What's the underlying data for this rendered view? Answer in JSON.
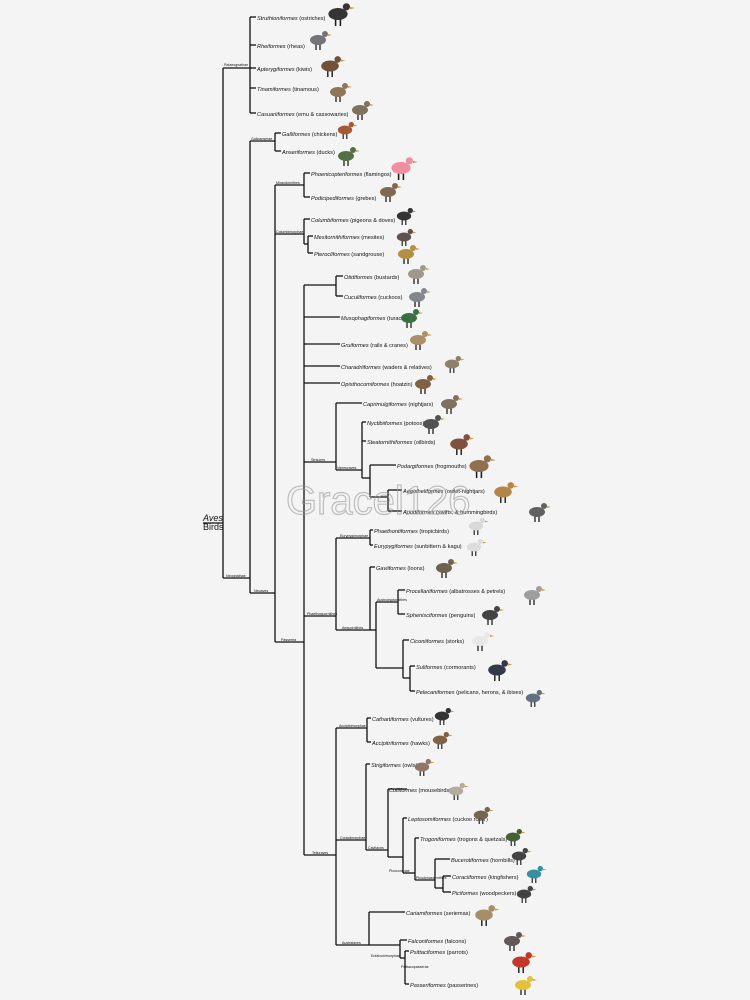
{
  "root": {
    "name": "Aves",
    "common": "Birds"
  },
  "watermark": "Gracel126",
  "colors": {
    "line": "#111111",
    "background": "#f4f4f4"
  },
  "clades": {
    "palaeognathae": "Palaeognathae",
    "neognathae": "Neognathae",
    "galloanserae": "Galloanserae",
    "neoaves": "Neoaves",
    "mirandornithes": "Mirandornithes",
    "columbimorphae": "Columbimorphae",
    "passerea": "Passerea",
    "strisores": "Strisores",
    "phaethoquornithes": "Phaethoquornithes",
    "eurypygimorphae": "Eurypygimorphae",
    "aequornithes": "Aequornithes",
    "austrodyptornithes": "Austrodyptornithes",
    "telluraves": "Telluraves",
    "accipitrimorphae": "Accipitrimorphae",
    "coraciimorphae": "Coraciimorphae",
    "cavitaves": "Cavitaves",
    "picocoraciae": "Picocoraciae",
    "picodynastornithes": "Picodynastornithes",
    "australaves": "Australaves",
    "eufalconimorphae": "Eufalconimorphae",
    "psittacopasserae": "Psittacopasserae",
    "vanescaves": "Vanescaves"
  },
  "orders": [
    {
      "name": "Struthioniformes",
      "common": "(ostriches)",
      "icon": "ostrich-icon"
    },
    {
      "name": "Rheiformes",
      "common": "(rheas)",
      "icon": "rhea-icon"
    },
    {
      "name": "Apterygiformes",
      "common": "(kiwis)",
      "icon": "kiwi-icon"
    },
    {
      "name": "Tinamiformes",
      "common": "(tinamous)",
      "icon": "tinamou-icon"
    },
    {
      "name": "Casuariiformes",
      "common": "(emu & cassowaries)",
      "icon": "emu-icon"
    },
    {
      "name": "Galliformes",
      "common": "(chickens)",
      "icon": "chicken-icon"
    },
    {
      "name": "Anseriformes",
      "common": "(ducks)",
      "icon": "duck-icon"
    },
    {
      "name": "Phoenicopteriformes",
      "common": "(flamingos)",
      "icon": "flamingo-icon"
    },
    {
      "name": "Podicipediformes",
      "common": "(grebes)",
      "icon": "grebe-icon"
    },
    {
      "name": "Columbiformes",
      "common": "(pigeons & doves)",
      "icon": "pigeon-icon"
    },
    {
      "name": "Mesitornithiformes",
      "common": "(mesites)",
      "icon": "mesite-icon"
    },
    {
      "name": "Pterocliformes",
      "common": "(sandgrouse)",
      "icon": "sandgrouse-icon"
    },
    {
      "name": "Otidiformes",
      "common": "(bustards)",
      "icon": "bustard-icon"
    },
    {
      "name": "Cuculiformes",
      "common": "(cuckoos)",
      "icon": "cuckoo-icon"
    },
    {
      "name": "Musophagiformes",
      "common": "(turacos)",
      "icon": "turaco-icon"
    },
    {
      "name": "Gruiformes",
      "common": "(rails & cranes)",
      "icon": "crane-icon"
    },
    {
      "name": "Charadriiformes",
      "common": "(waders & relatives)",
      "icon": "wader-icon"
    },
    {
      "name": "Opisthocomiformes",
      "common": "(hoatzin)",
      "icon": "hoatzin-icon"
    },
    {
      "name": "Caprimulgiformes",
      "common": "(nightjars)",
      "icon": "nightjar-icon"
    },
    {
      "name": "Nyctibiiformes",
      "common": "(potoos)",
      "icon": "potoo-icon"
    },
    {
      "name": "Steatornithiformes",
      "common": "(oilbirds)",
      "icon": "oilbird-icon"
    },
    {
      "name": "Podargiformes",
      "common": "(frogmouths)",
      "icon": "frogmouth-icon"
    },
    {
      "name": "Aegotheliformes",
      "common": "(owlet-nightjars)",
      "icon": "owlet-nightjar-icon"
    },
    {
      "name": "Apodiformes",
      "common": "(swifts, & hummingbirds)",
      "icon": "hummingbird-icon"
    },
    {
      "name": "Phaethontiformes",
      "common": "(tropicbirds)",
      "icon": "tropicbird-icon"
    },
    {
      "name": "Eurypygiformes",
      "common": "(sunbittern & kagu)",
      "icon": "kagu-icon"
    },
    {
      "name": "Gaviiformes",
      "common": "(loons)",
      "icon": "loon-icon"
    },
    {
      "name": "Procellariiformes",
      "common": "(albatrosses & petrels)",
      "icon": "albatross-icon"
    },
    {
      "name": "Sphenisciformes",
      "common": "(penguins)",
      "icon": "penguin-icon"
    },
    {
      "name": "Ciconiiformes",
      "common": "(storks)",
      "icon": "stork-icon"
    },
    {
      "name": "Suliformes",
      "common": "(cormorants)",
      "icon": "cormorant-icon"
    },
    {
      "name": "Pelecaniformes",
      "common": "(pelicans, herons, & ibises)",
      "icon": "heron-icon"
    },
    {
      "name": "Cathartiformes",
      "common": "(vultures)",
      "icon": "vulture-icon"
    },
    {
      "name": "Accipitriformes",
      "common": "(hawks)",
      "icon": "hawk-icon"
    },
    {
      "name": "Strigiformes",
      "common": "(owls)",
      "icon": "owl-icon"
    },
    {
      "name": "Coliiformes",
      "common": "(mousebirds)",
      "icon": "mousebird-icon"
    },
    {
      "name": "Leptosomiformes",
      "common": "(cuckoo roller)",
      "icon": "cuckoo-roller-icon"
    },
    {
      "name": "Trogoniformes",
      "common": "(trogons & quetzals)",
      "icon": "trogon-icon"
    },
    {
      "name": "Bucerotiformes",
      "common": "(hornbills)",
      "icon": "hornbill-icon"
    },
    {
      "name": "Coraciiformes",
      "common": "(kingfishers)",
      "icon": "kingfisher-icon"
    },
    {
      "name": "Piciformes",
      "common": "(woodpeckers)",
      "icon": "woodpecker-icon"
    },
    {
      "name": "Cariamiformes",
      "common": "(seriemas)",
      "icon": "seriema-icon"
    },
    {
      "name": "Falconiformes",
      "common": "(falcons)",
      "icon": "falcon-icon"
    },
    {
      "name": "Psittaciformes",
      "common": "(parrots)",
      "icon": "parrot-icon"
    },
    {
      "name": "Passeriformes",
      "common": "(passerines)",
      "icon": "passerine-icon"
    }
  ],
  "bird_colors": [
    "#2b2b2b",
    "#6e6e72",
    "#6b4a2e",
    "#8a6f52",
    "#7a6a58",
    "#a0522d",
    "#4d6b3a",
    "#f08a9a",
    "#7a6248",
    "#2a2a2a",
    "#5a4a42",
    "#b08a3a",
    "#9a9488",
    "#7f8288",
    "#2f6b3a",
    "#a88a62",
    "#8a7a62",
    "#7a5a3a",
    "#7a6a58",
    "#4a4a4a",
    "#7a4a32",
    "#8a6a48",
    "#b08040",
    "#5a5a5a",
    "#d8d8d8",
    "#dcdcdc",
    "#6a5a48",
    "#9a9a9a",
    "#3a3a3a",
    "#e8e8e8",
    "#2a3040",
    "#5a6a7a",
    "#2a2a2a",
    "#7a5a3a",
    "#8a7060",
    "#b0a898",
    "#6a6048",
    "#3a5a2a",
    "#3a3a3a",
    "#2a8a9a",
    "#3a3a3a",
    "#a08a62",
    "#5a5050",
    "#c03020",
    "#e0c030"
  ]
}
